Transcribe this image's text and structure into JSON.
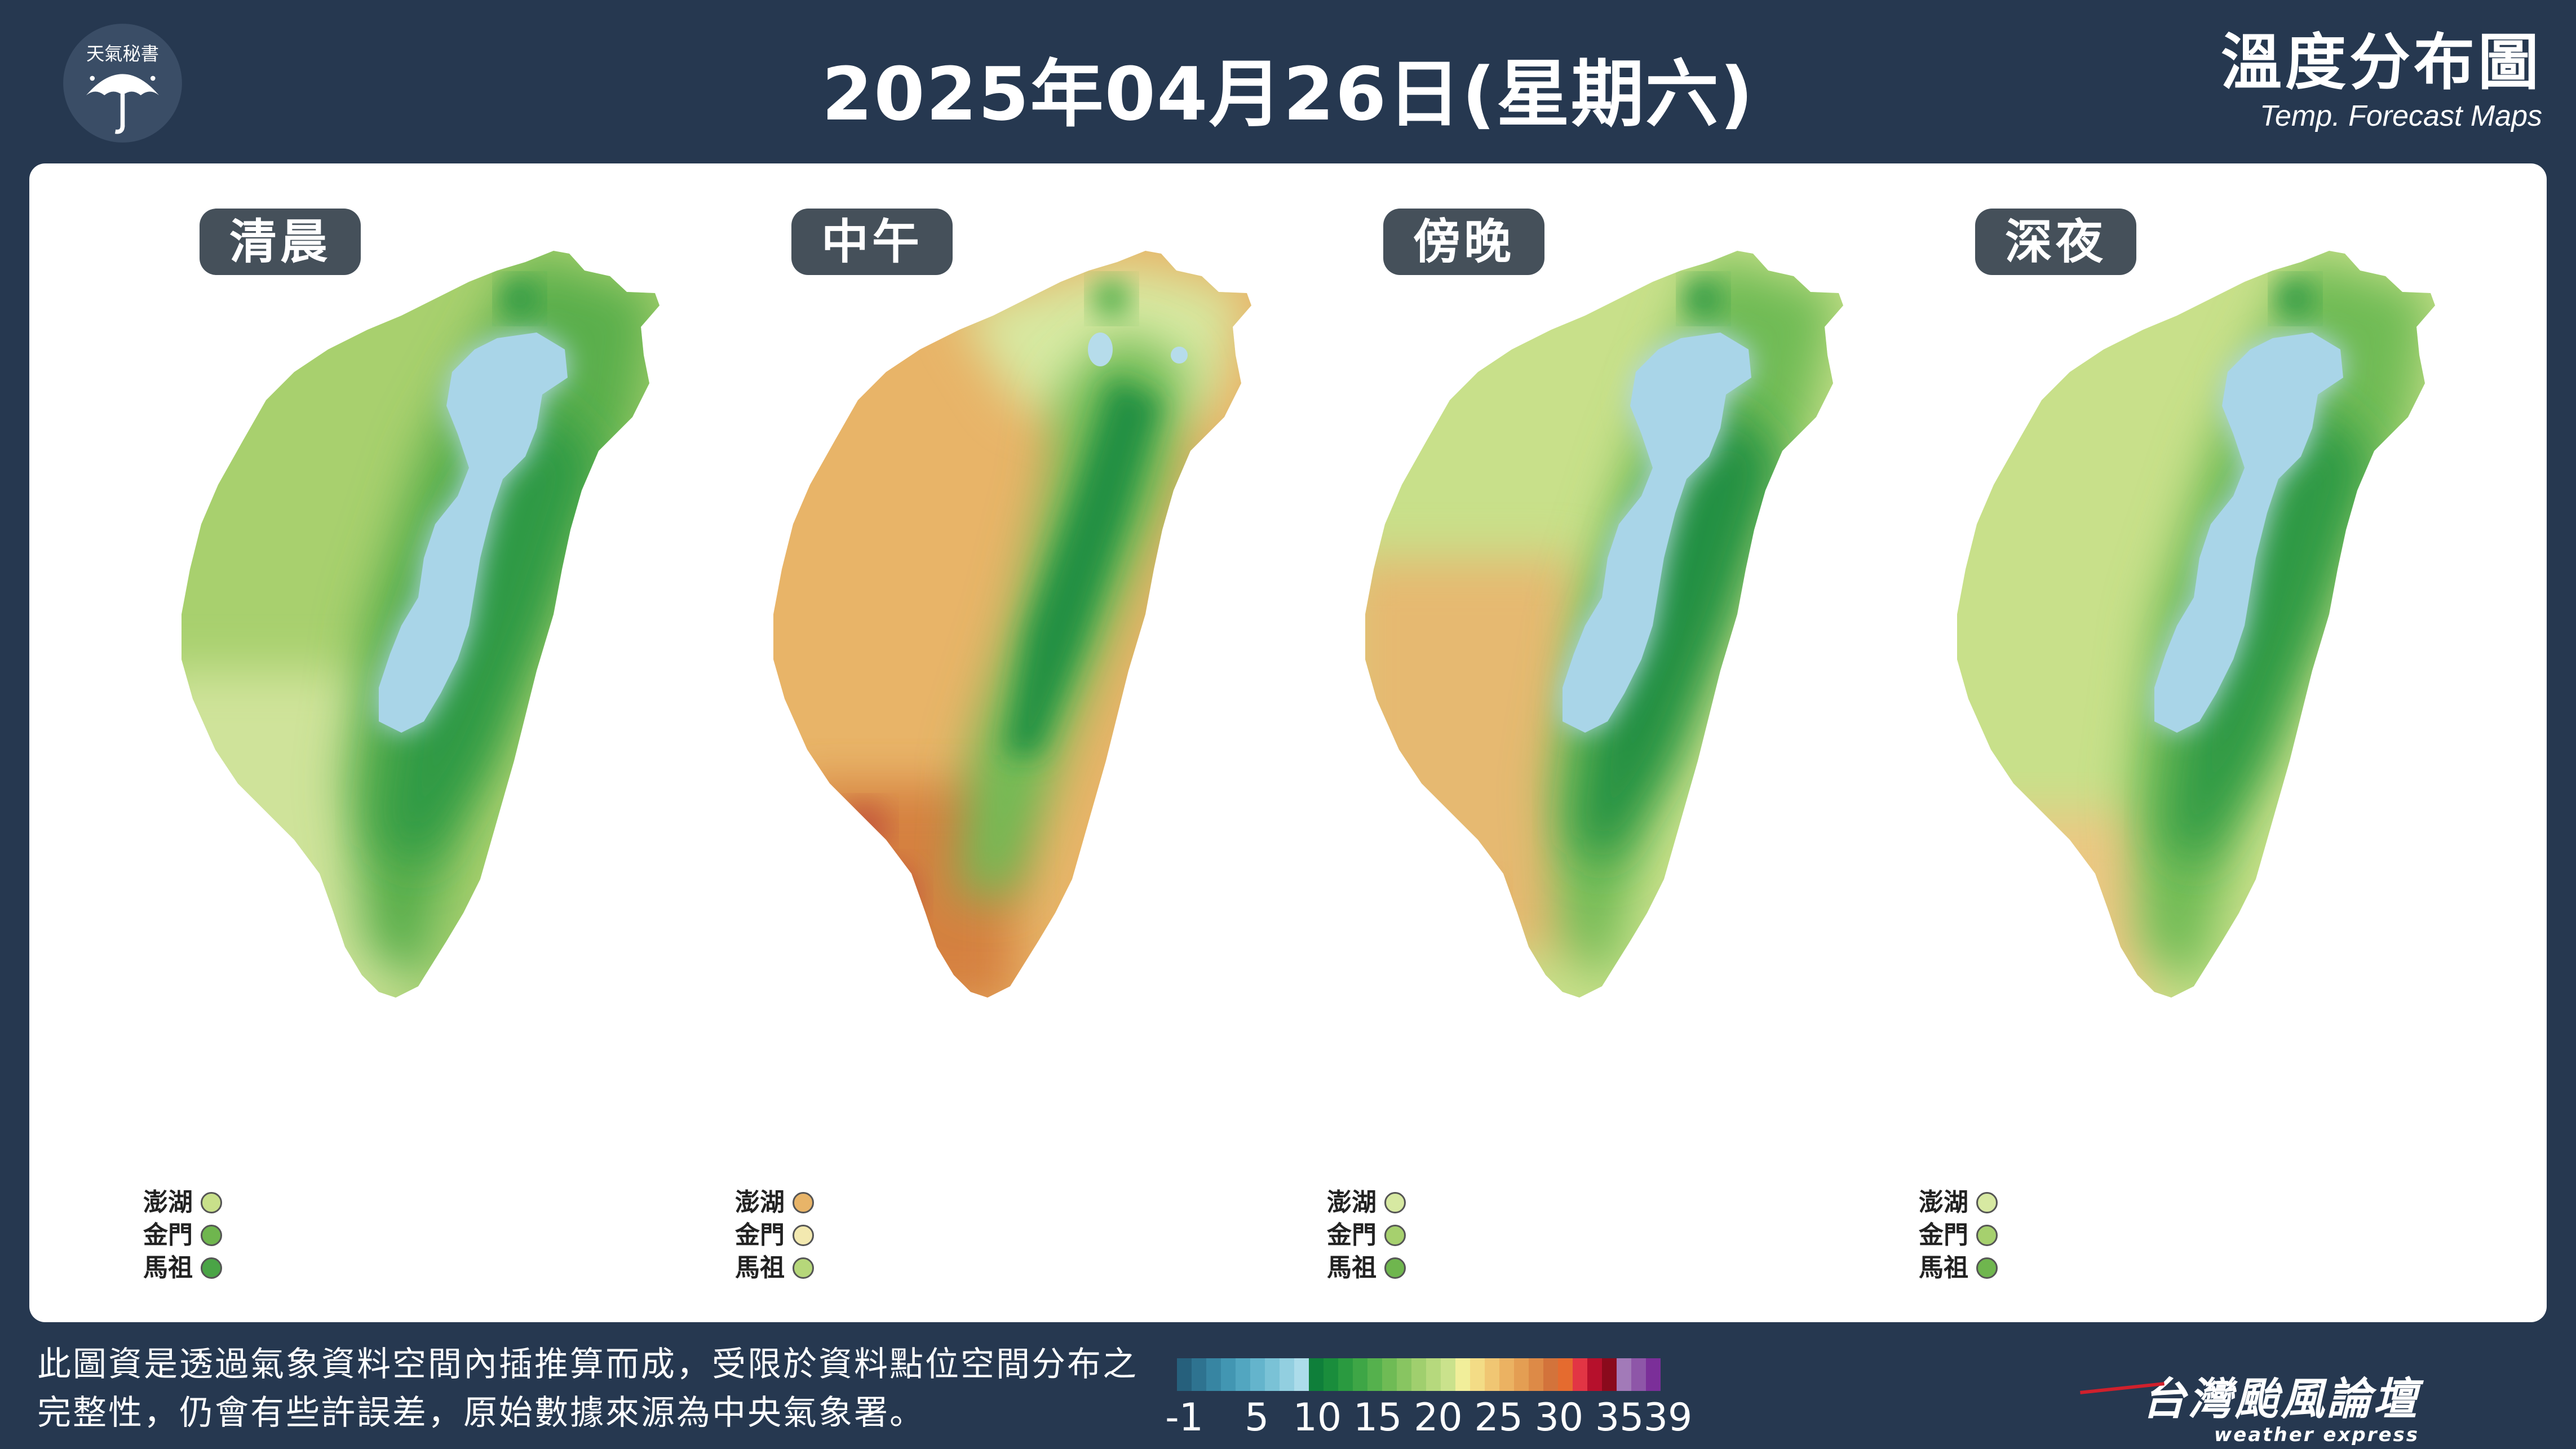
{
  "logo_text": "天氣秘書",
  "title": "2025年04月26日(星期六)",
  "brand": {
    "zh": "溫度分布圖",
    "en": "Temp. Forecast Maps"
  },
  "panels": [
    {
      "label": "清晨",
      "islands": [
        {
          "name": "澎湖",
          "color": "#c8e08a"
        },
        {
          "name": "金門",
          "color": "#6fb64e"
        },
        {
          "name": "馬祖",
          "color": "#4aa446"
        }
      ]
    },
    {
      "label": "中午",
      "islands": [
        {
          "name": "澎湖",
          "color": "#e8b468"
        },
        {
          "name": "金門",
          "color": "#f3e9b0"
        },
        {
          "name": "馬祖",
          "color": "#b6d77a"
        }
      ]
    },
    {
      "label": "傍晚",
      "islands": [
        {
          "name": "澎湖",
          "color": "#d7e9a2"
        },
        {
          "name": "金門",
          "color": "#a6d06e"
        },
        {
          "name": "馬祖",
          "color": "#6fb64e"
        }
      ]
    },
    {
      "label": "深夜",
      "islands": [
        {
          "name": "澎湖",
          "color": "#d7e9a2"
        },
        {
          "name": "金門",
          "color": "#a6d06e"
        },
        {
          "name": "馬祖",
          "color": "#6fb64e"
        }
      ]
    }
  ],
  "note": "此圖資是透過氣象資料空間內插推算而成，受限於資料點位空間分布之完整性，仍會有些許誤差，原始數據來源為中央氣象署。",
  "scale": {
    "colors": [
      "#26607c",
      "#2e7390",
      "#3785a2",
      "#4296b2",
      "#52a6c0",
      "#64b4cc",
      "#7ac2d6",
      "#92cfe0",
      "#acdcea",
      "#0f7f3a",
      "#1a8d3c",
      "#2a9a40",
      "#3ea646",
      "#55b14d",
      "#6fbb55",
      "#88c561",
      "#a0cf6e",
      "#b6d97d",
      "#cae28c",
      "#f1ee9a",
      "#f3dc86",
      "#f0c673",
      "#ebb262",
      "#e49e53",
      "#dd8a47",
      "#d3733b",
      "#e56b2f",
      "#e23544",
      "#b6102c",
      "#8a0a1c",
      "#a27ab8",
      "#8e56a8",
      "#7b2f99"
    ],
    "ticks": [
      "-1",
      "5",
      "10",
      "15",
      "20",
      "25",
      "30",
      "35",
      "39"
    ]
  },
  "bottom_brand": {
    "zh": "台灣颱風論壇",
    "en": "weather express"
  }
}
